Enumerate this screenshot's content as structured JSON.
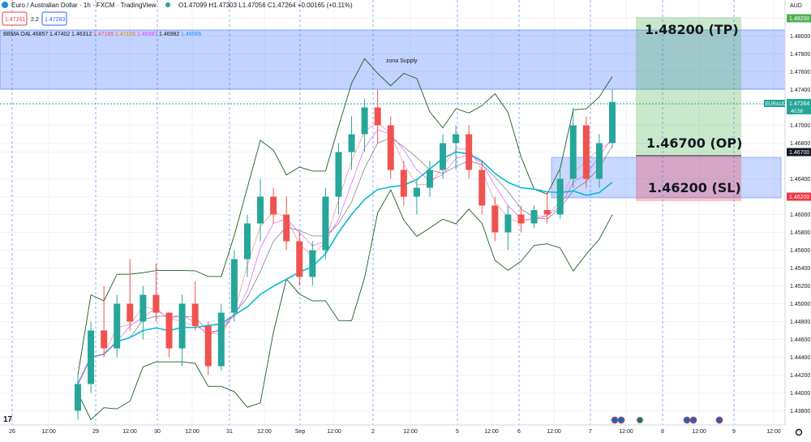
{
  "header": {
    "title": "Euro / Australian Dollar · 1h · FXCM · TradingView",
    "ohlc": "O1.47099 H1.47303 L1.47056 C1.47264 +0.00165 (+0.11%)",
    "sell_price": "1.47261",
    "spread": "2.2",
    "buy_price": "1.47283",
    "indicator_label": "BBMA OA",
    "indicator_values": [
      "1.46857",
      "1.47402",
      "1.46312",
      "1.47165",
      "1.47156",
      "1.46997",
      "1.46982",
      "1.46566"
    ],
    "indicator_colors": [
      "#131722",
      "#131722",
      "#131722",
      "#ef5350",
      "#f57c00",
      "#e040fb",
      "#131722",
      "#2196f3"
    ]
  },
  "price_axis": {
    "currency": "AUD",
    "ticks": [
      "1.48200",
      "1.48000",
      "1.47800",
      "1.47600",
      "1.47400",
      "1.47264",
      "1.47000",
      "1.46800",
      "1.46700",
      "1.46400",
      "1.46200",
      "1.46000",
      "1.45800",
      "1.45600",
      "1.45400",
      "1.45200",
      "1.45000",
      "1.44800",
      "1.44600",
      "1.44400",
      "1.44200",
      "1.44000",
      "1.43800"
    ],
    "badges": [
      {
        "value": "1.48200",
        "color": "#4caf50"
      },
      {
        "value": "1.46700",
        "color": "#131722"
      },
      {
        "value": "1.46200",
        "color": "#f23645"
      }
    ],
    "current_symbol": "EURAUD",
    "current_price": "1.47264",
    "countdown": "40:58"
  },
  "time_axis": {
    "ticks": [
      "26",
      "12:00",
      "29",
      "12:00",
      "30",
      "12:00",
      "31",
      "12:00",
      "Sep",
      "12:00",
      "2",
      "12:00",
      "5",
      "12:00",
      "6",
      "12:00",
      "7",
      "12:00",
      "8",
      "12:00",
      "9",
      "12:00"
    ]
  },
  "annotations": {
    "supply_zone": "zona Supply",
    "tp_label": "1.48200 (TP)",
    "op_label": "1.46700 (OP)",
    "sl_label": "1.46200 (SL)"
  },
  "colors": {
    "candle_up": "#26a69a",
    "candle_down": "#ef5350",
    "supply_zone": "#2962ff",
    "profit_zone": "#4caf50",
    "loss_zone": "#f23645",
    "ema": "#00bcd4",
    "band": "#1b5e20"
  },
  "chart_data": {
    "type": "candlestick",
    "symbol": "EURAUD",
    "timeframe": "1h",
    "ylim": [
      1.4375,
      1.4835
    ],
    "grid": true,
    "supply_zone": [
      1.4744,
      1.4807
    ],
    "demand_zone": [
      1.4624,
      1.4666
    ],
    "position": {
      "entry": 1.467,
      "take_profit": 1.482,
      "stop_loss": 1.462
    },
    "candles": [
      {
        "o": 1.438,
        "h": 1.442,
        "l": 1.437,
        "c": 1.441
      },
      {
        "o": 1.441,
        "h": 1.448,
        "l": 1.44,
        "c": 1.447
      },
      {
        "o": 1.447,
        "h": 1.452,
        "l": 1.444,
        "c": 1.445
      },
      {
        "o": 1.445,
        "h": 1.451,
        "l": 1.444,
        "c": 1.45
      },
      {
        "o": 1.45,
        "h": 1.455,
        "l": 1.447,
        "c": 1.448
      },
      {
        "o": 1.448,
        "h": 1.452,
        "l": 1.446,
        "c": 1.451
      },
      {
        "o": 1.451,
        "h": 1.4545,
        "l": 1.448,
        "c": 1.449
      },
      {
        "o": 1.449,
        "h": 1.449,
        "l": 1.444,
        "c": 1.445
      },
      {
        "o": 1.445,
        "h": 1.451,
        "l": 1.443,
        "c": 1.45
      },
      {
        "o": 1.45,
        "h": 1.4525,
        "l": 1.447,
        "c": 1.4475
      },
      {
        "o": 1.4475,
        "h": 1.448,
        "l": 1.442,
        "c": 1.443
      },
      {
        "o": 1.443,
        "h": 1.45,
        "l": 1.4425,
        "c": 1.449
      },
      {
        "o": 1.449,
        "h": 1.456,
        "l": 1.448,
        "c": 1.455
      },
      {
        "o": 1.455,
        "h": 1.46,
        "l": 1.453,
        "c": 1.459
      },
      {
        "o": 1.459,
        "h": 1.464,
        "l": 1.457,
        "c": 1.462
      },
      {
        "o": 1.462,
        "h": 1.463,
        "l": 1.459,
        "c": 1.46
      },
      {
        "o": 1.46,
        "h": 1.462,
        "l": 1.456,
        "c": 1.457
      },
      {
        "o": 1.457,
        "h": 1.458,
        "l": 1.452,
        "c": 1.453
      },
      {
        "o": 1.453,
        "h": 1.457,
        "l": 1.452,
        "c": 1.456
      },
      {
        "o": 1.456,
        "h": 1.463,
        "l": 1.455,
        "c": 1.462
      },
      {
        "o": 1.462,
        "h": 1.468,
        "l": 1.46,
        "c": 1.467
      },
      {
        "o": 1.467,
        "h": 1.471,
        "l": 1.465,
        "c": 1.469
      },
      {
        "o": 1.469,
        "h": 1.473,
        "l": 1.467,
        "c": 1.472
      },
      {
        "o": 1.472,
        "h": 1.474,
        "l": 1.468,
        "c": 1.47
      },
      {
        "o": 1.47,
        "h": 1.471,
        "l": 1.464,
        "c": 1.465
      },
      {
        "o": 1.465,
        "h": 1.466,
        "l": 1.461,
        "c": 1.462
      },
      {
        "o": 1.462,
        "h": 1.464,
        "l": 1.46,
        "c": 1.463
      },
      {
        "o": 1.463,
        "h": 1.466,
        "l": 1.462,
        "c": 1.465
      },
      {
        "o": 1.465,
        "h": 1.469,
        "l": 1.464,
        "c": 1.468
      },
      {
        "o": 1.468,
        "h": 1.47,
        "l": 1.465,
        "c": 1.469
      },
      {
        "o": 1.469,
        "h": 1.47,
        "l": 1.464,
        "c": 1.465
      },
      {
        "o": 1.465,
        "h": 1.466,
        "l": 1.46,
        "c": 1.461
      },
      {
        "o": 1.461,
        "h": 1.462,
        "l": 1.457,
        "c": 1.458
      },
      {
        "o": 1.458,
        "h": 1.461,
        "l": 1.456,
        "c": 1.46
      },
      {
        "o": 1.46,
        "h": 1.461,
        "l": 1.458,
        "c": 1.459
      },
      {
        "o": 1.459,
        "h": 1.461,
        "l": 1.4585,
        "c": 1.4605
      },
      {
        "o": 1.4605,
        "h": 1.4625,
        "l": 1.459,
        "c": 1.46
      },
      {
        "o": 1.46,
        "h": 1.465,
        "l": 1.4595,
        "c": 1.464
      },
      {
        "o": 1.464,
        "h": 1.472,
        "l": 1.463,
        "c": 1.47
      },
      {
        "o": 1.47,
        "h": 1.471,
        "l": 1.463,
        "c": 1.464
      },
      {
        "o": 1.464,
        "h": 1.469,
        "l": 1.463,
        "c": 1.468
      },
      {
        "o": 1.468,
        "h": 1.474,
        "l": 1.4675,
        "c": 1.4726
      }
    ]
  }
}
